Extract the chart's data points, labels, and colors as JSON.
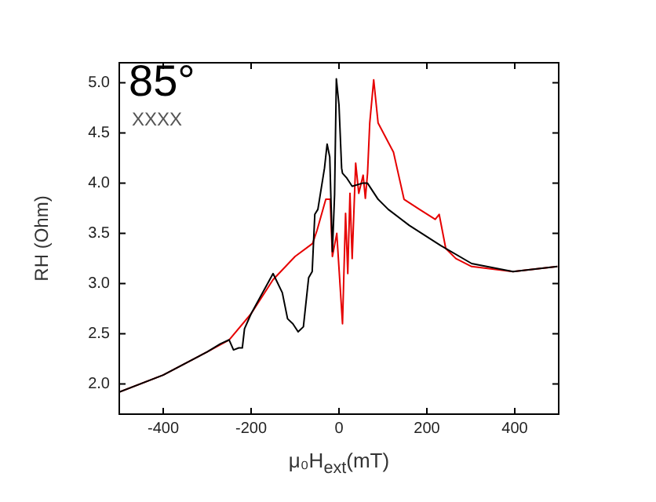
{
  "chart_data": {
    "type": "line",
    "title": "85°",
    "annotations": [
      "XXXX"
    ],
    "xlabel": "μ₀H$_{ext}$(mT)",
    "ylabel": "RH (Ohm)",
    "xlim": [
      -500,
      500
    ],
    "xticks": [
      -400,
      -200,
      0,
      200,
      400
    ],
    "ylim": [
      1.7,
      5.2
    ],
    "yticks": [
      {
        "value": 2,
        "label": "2.0"
      },
      2.5,
      {
        "value": 3,
        "label": "3.0"
      },
      3.5,
      {
        "value": 4,
        "label": "4.0"
      },
      4.5,
      {
        "value": 5,
        "label": "5.0"
      }
    ],
    "grid": false,
    "legend": false,
    "marker": "none",
    "line_style": "solid",
    "series": [
      {
        "color": "#000000",
        "x": [
          -500,
          -400,
          -300,
          -270,
          -250,
          -240,
          -228,
          -220,
          -215,
          -200,
          -150,
          -129,
          -117,
          -105,
          -93,
          -81,
          -69,
          -61,
          -55,
          -48,
          -33,
          -27,
          -21,
          -15,
          -10,
          -6,
          0,
          6,
          8,
          18,
          30,
          53,
          65,
          89,
          112,
          160,
          231,
          302,
          396,
          497
        ],
        "values": [
          1.92,
          2.09,
          2.32,
          2.4,
          2.44,
          2.34,
          2.36,
          2.36,
          2.55,
          2.7,
          3.1,
          2.91,
          2.65,
          2.6,
          2.52,
          2.57,
          3.06,
          3.12,
          3.69,
          3.74,
          4.15,
          4.39,
          4.26,
          3.32,
          3.89,
          5.04,
          4.78,
          4.15,
          4.1,
          4.05,
          3.97,
          4.0,
          4.0,
          3.84,
          3.74,
          3.58,
          3.38,
          3.2,
          3.12,
          3.17
        ]
      },
      {
        "color": "#e60000",
        "x": [
          -500,
          -400,
          -300,
          -250,
          -200,
          -150,
          -100,
          -60,
          -50,
          -30,
          -20,
          -15,
          -5,
          8,
          15,
          20,
          25,
          30,
          38,
          45,
          55,
          60,
          65,
          70,
          79,
          89,
          124,
          148,
          183,
          219,
          228,
          243,
          266,
          302,
          396,
          497
        ],
        "values": [
          1.92,
          2.09,
          2.32,
          2.44,
          2.7,
          3.04,
          3.27,
          3.4,
          3.53,
          3.84,
          3.84,
          3.27,
          3.5,
          2.6,
          3.7,
          3.1,
          3.9,
          3.25,
          4.2,
          3.9,
          4.08,
          3.85,
          4.1,
          4.6,
          5.03,
          4.6,
          4.31,
          3.84,
          3.74,
          3.64,
          3.69,
          3.35,
          3.25,
          3.17,
          3.12,
          3.17
        ]
      }
    ]
  }
}
